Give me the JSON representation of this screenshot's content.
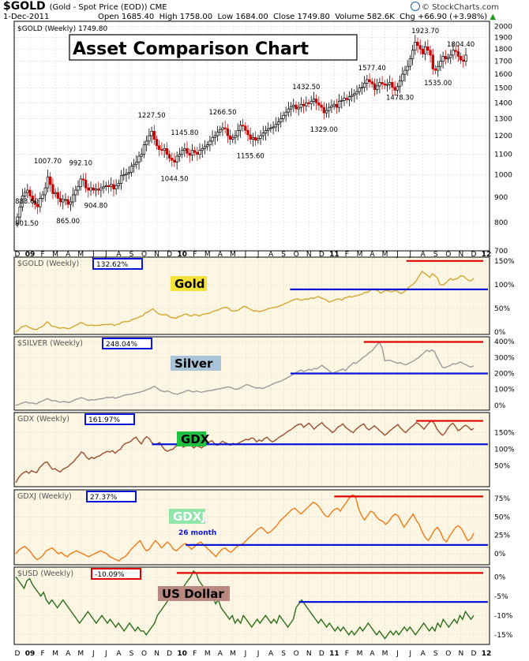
{
  "header": {
    "symbol": "$GOLD",
    "description": "(Gold - Spot Price (EOD)) CME",
    "date": "1-Dec-2011",
    "open": "Open 1685.40",
    "high": "High 1758.00",
    "low": "Low 1684.00",
    "close": "Close 1749.80",
    "volume": "Volume 582.6K",
    "change": "Chg +66.90 (+3.98%)",
    "change_arrow": "▲",
    "brand": "© StockCharts.com"
  },
  "colors": {
    "gold": "#d4a630",
    "silver": "#9a9a9a",
    "gdx": "#9b4e2e",
    "gdxj": "#f07a17",
    "usd": "#2b6e1c",
    "support": "#0a14d8",
    "resistance": "#e00000",
    "up_candle": "#000000",
    "down_candle": "#cc0000",
    "panel_bg": "#fdf6e3"
  },
  "x_axis": {
    "labels": [
      "D",
      "09",
      "F",
      "M",
      "A",
      "M",
      "J",
      "J",
      "A",
      "S",
      "O",
      "N",
      "D",
      "10",
      "F",
      "M",
      "A",
      "M",
      "J",
      "J",
      "A",
      "S",
      "O",
      "N",
      "D",
      "11",
      "F",
      "M",
      "A",
      "M",
      "J",
      "J",
      "A",
      "S",
      "O",
      "N",
      "D",
      "12"
    ],
    "bold": [
      "09",
      "10",
      "11",
      "12"
    ]
  },
  "chart_data": [
    {
      "type": "candlestick",
      "title": "Asset Comparison Chart",
      "legend": "$GOLD (Weekly) 1749.80",
      "x_range": [
        "2008-12",
        "2011-12"
      ],
      "ylim": [
        700,
        2050
      ],
      "y_scale": "log",
      "y_ticks": [
        700,
        800,
        900,
        1000,
        1100,
        1200,
        1300,
        1400,
        1500,
        1600,
        1700,
        1800,
        1900,
        2000
      ],
      "close": [
        820,
        860,
        905,
        920,
        930,
        905,
        885,
        870,
        860,
        895,
        910,
        940,
        990,
        955,
        915,
        920,
        895,
        880,
        890,
        890,
        870,
        880,
        910,
        930,
        945,
        980,
        975,
        940,
        930,
        940,
        930,
        935,
        930,
        940,
        945,
        950,
        945,
        955,
        935,
        950,
        960,
        995,
        1000,
        1005,
        1010,
        1040,
        1050,
        1060,
        1090,
        1100,
        1150,
        1170,
        1200,
        1225,
        1180,
        1145,
        1125,
        1120,
        1130,
        1100,
        1080,
        1070,
        1060,
        1090,
        1100,
        1120,
        1130,
        1105,
        1095,
        1120,
        1110,
        1100,
        1120,
        1130,
        1140,
        1150,
        1170,
        1190,
        1200,
        1220,
        1235,
        1245,
        1240,
        1200,
        1180,
        1190,
        1200,
        1230,
        1260,
        1255,
        1230,
        1205,
        1180,
        1190,
        1175,
        1185,
        1200,
        1215,
        1230,
        1240,
        1245,
        1250,
        1265,
        1280,
        1300,
        1320,
        1340,
        1360,
        1375,
        1385,
        1360,
        1370,
        1390,
        1380,
        1400,
        1395,
        1410,
        1425,
        1400,
        1385,
        1370,
        1335,
        1350,
        1370,
        1380,
        1390,
        1370,
        1410,
        1415,
        1430,
        1420,
        1440,
        1450,
        1460,
        1475,
        1500,
        1505,
        1535,
        1560,
        1545,
        1530,
        1490,
        1515,
        1540,
        1530,
        1520,
        1525,
        1540,
        1505,
        1485,
        1510,
        1550,
        1600,
        1630,
        1660,
        1720,
        1790,
        1860,
        1830,
        1800,
        1760,
        1820,
        1790,
        1750,
        1640,
        1630,
        1660,
        1700,
        1740,
        1720,
        1730,
        1750,
        1790,
        1780,
        1740,
        1710,
        1700,
        1750
      ],
      "labels": [
        {
          "value": "883.60",
          "kind": "high",
          "i": 0
        },
        {
          "value": "801.50",
          "kind": "low",
          "i": 1
        },
        {
          "value": "1007.70",
          "kind": "high",
          "i": 12
        },
        {
          "value": "865.00",
          "kind": "low",
          "i": 20
        },
        {
          "value": "992.10",
          "kind": "high",
          "i": 25
        },
        {
          "value": "904.80",
          "kind": "low",
          "i": 31
        },
        {
          "value": "1227.50",
          "kind": "high",
          "i": 53
        },
        {
          "value": "1145.80",
          "kind": "high",
          "i": 66
        },
        {
          "value": "1044.50",
          "kind": "low",
          "i": 62
        },
        {
          "value": "1266.50",
          "kind": "high",
          "i": 81
        },
        {
          "value": "1155.60",
          "kind": "low",
          "i": 92
        },
        {
          "value": "1432.50",
          "kind": "high",
          "i": 114
        },
        {
          "value": "1329.00",
          "kind": "low",
          "i": 121
        },
        {
          "value": "1577.40",
          "kind": "high",
          "i": 140
        },
        {
          "value": "1478.30",
          "kind": "low",
          "i": 151
        },
        {
          "value": "1923.70",
          "kind": "high",
          "i": 161
        },
        {
          "value": "1535.00",
          "kind": "low",
          "i": 166
        },
        {
          "value": "1804.40",
          "kind": "high",
          "i": 175
        }
      ]
    },
    {
      "type": "line",
      "name": "$GOLD (Weekly)",
      "badge": "132.62%",
      "label": "Gold",
      "ylim": [
        -5,
        158
      ],
      "y_ticks": [
        0,
        50,
        100,
        150
      ],
      "y_tick_labels": [
        "0%",
        "50%",
        "100%",
        "150%"
      ],
      "resistance": 150,
      "support": 90,
      "values": [
        0,
        4,
        10,
        12,
        14,
        10,
        8,
        6,
        5,
        9,
        11,
        15,
        22,
        18,
        12,
        12,
        10,
        8,
        9,
        9,
        7,
        8,
        11,
        14,
        16,
        20,
        19,
        15,
        14,
        15,
        14,
        14,
        14,
        15,
        16,
        16,
        16,
        17,
        14,
        16,
        17,
        21,
        22,
        22,
        23,
        27,
        28,
        30,
        33,
        34,
        40,
        42,
        46,
        49,
        44,
        39,
        37,
        36,
        37,
        34,
        31,
        30,
        29,
        33,
        34,
        37,
        38,
        35,
        34,
        37,
        36,
        34,
        37,
        38,
        39,
        40,
        43,
        45,
        46,
        49,
        51,
        52,
        51,
        46,
        44,
        45,
        46,
        50,
        54,
        53,
        50,
        47,
        44,
        45,
        43,
        44,
        46,
        48,
        50,
        51,
        52,
        53,
        55,
        57,
        60,
        62,
        65,
        67,
        69,
        70,
        67,
        68,
        70,
        69,
        72,
        71,
        73,
        75,
        72,
        70,
        68,
        63,
        65,
        67,
        69,
        70,
        67,
        72,
        73,
        75,
        74,
        76,
        77,
        79,
        80,
        84,
        84,
        88,
        91,
        89,
        87,
        82,
        85,
        88,
        87,
        85,
        86,
        88,
        84,
        81,
        85,
        89,
        95,
        99,
        103,
        110,
        119,
        128,
        124,
        120,
        115,
        123,
        119,
        114,
        100,
        99,
        103,
        108,
        113,
        110,
        112,
        114,
        119,
        118,
        113,
        109,
        108,
        114
      ]
    },
    {
      "type": "line",
      "name": "$SILVER (Weekly)",
      "badge": "248.04%",
      "label": "Silver",
      "ylim": [
        -30,
        430
      ],
      "y_ticks": [
        0,
        100,
        200,
        300,
        400
      ],
      "y_tick_labels": [
        "0%",
        "100%",
        "200%",
        "300%",
        "400%"
      ],
      "resistance": 398,
      "support": 200,
      "values": [
        0,
        5,
        12,
        18,
        22,
        14,
        16,
        12,
        10,
        20,
        26,
        34,
        42,
        36,
        28,
        30,
        24,
        20,
        24,
        22,
        18,
        22,
        30,
        38,
        42,
        48,
        44,
        36,
        32,
        36,
        34,
        38,
        40,
        42,
        46,
        50,
        48,
        52,
        44,
        50,
        54,
        62,
        66,
        68,
        70,
        74,
        78,
        82,
        86,
        90,
        98,
        104,
        112,
        120,
        108,
        96,
        88,
        86,
        90,
        84,
        76,
        72,
        70,
        78,
        82,
        90,
        94,
        88,
        84,
        90,
        86,
        82,
        86,
        90,
        92,
        94,
        98,
        102,
        104,
        108,
        112,
        116,
        114,
        106,
        100,
        104,
        110,
        120,
        130,
        128,
        120,
        114,
        108,
        112,
        106,
        110,
        118,
        124,
        132,
        140,
        146,
        150,
        158,
        166,
        176,
        184,
        194,
        204,
        214,
        222,
        212,
        218,
        226,
        220,
        232,
        228,
        240,
        252,
        238,
        226,
        214,
        200,
        208,
        214,
        222,
        228,
        218,
        238,
        252,
        268,
        264,
        276,
        290,
        304,
        314,
        330,
        340,
        360,
        380,
        395,
        360,
        280,
        282,
        284,
        276,
        270,
        264,
        268,
        260,
        254,
        262,
        270,
        278,
        290,
        300,
        316,
        330,
        346,
        338,
        348,
        338,
        300,
        270,
        240,
        236,
        244,
        250,
        262,
        258,
        266,
        272,
        262,
        256,
        246,
        240,
        248
      ]
    },
    {
      "type": "line",
      "name": "GDX (Weekly)",
      "badge": "161.97%",
      "label": "GDX",
      "ylim": [
        -12,
        210
      ],
      "y_ticks": [
        50,
        100,
        150
      ],
      "y_tick_labels": [
        "50%",
        "100%",
        "150%"
      ],
      "resistance": 185,
      "support": 115,
      "values": [
        0,
        14,
        24,
        30,
        34,
        28,
        36,
        32,
        30,
        44,
        52,
        60,
        62,
        50,
        40,
        42,
        36,
        32,
        40,
        44,
        48,
        56,
        62,
        72,
        80,
        92,
        88,
        76,
        70,
        76,
        72,
        78,
        80,
        86,
        90,
        94,
        92,
        96,
        88,
        96,
        100,
        112,
        118,
        120,
        124,
        132,
        136,
        124,
        116,
        130,
        138,
        132,
        120,
        114,
        116,
        120,
        108,
        98,
        94,
        98,
        100,
        108,
        112,
        116,
        106,
        110,
        116,
        112,
        104,
        110,
        108,
        104,
        110,
        118,
        122,
        126,
        116,
        112,
        118,
        124,
        120,
        116,
        112,
        118,
        114,
        118,
        122,
        126,
        130,
        128,
        134,
        132,
        122,
        128,
        124,
        132,
        136,
        128,
        122,
        126,
        132,
        138,
        142,
        148,
        154,
        158,
        164,
        170,
        174,
        176,
        166,
        172,
        178,
        170,
        160,
        168,
        174,
        180,
        170,
        164,
        158,
        150,
        156,
        166,
        170,
        176,
        166,
        160,
        154,
        150,
        160,
        166,
        172,
        176,
        164,
        158,
        164,
        170,
        164,
        156,
        150,
        142,
        148,
        156,
        162,
        168,
        174,
        164,
        156,
        150,
        158,
        166,
        172,
        180,
        176,
        168,
        160,
        170,
        180,
        186,
        176,
        160,
        150,
        142,
        148,
        162,
        172,
        178,
        168,
        156,
        160,
        168,
        172,
        166,
        158,
        162
      ]
    },
    {
      "type": "line",
      "name": "GDXJ (Weekly)",
      "badge": "27.37%",
      "label": "GDXJ",
      "annotation": "26 month",
      "ylim": [
        -15,
        87
      ],
      "y_ticks": [
        0,
        25,
        50,
        75
      ],
      "y_tick_labels": [
        "0%",
        "25%",
        "50%",
        "75%"
      ],
      "resistance": 78,
      "support": 12,
      "values": [
        0,
        5,
        8,
        10,
        6,
        2,
        -4,
        -8,
        -6,
        -2,
        4,
        6,
        8,
        4,
        0,
        2,
        -2,
        -4,
        0,
        2,
        4,
        2,
        0,
        -2,
        -4,
        -2,
        0,
        2,
        4,
        2,
        0,
        -4,
        -6,
        -8,
        -10,
        -6,
        -4,
        0,
        6,
        10,
        14,
        18,
        10,
        4,
        6,
        12,
        18,
        14,
        8,
        12,
        16,
        12,
        6,
        4,
        8,
        12,
        14,
        10,
        6,
        10,
        14,
        16,
        12,
        8,
        4,
        0,
        -4,
        2,
        6,
        8,
        4,
        2,
        6,
        10,
        12,
        14,
        18,
        22,
        26,
        30,
        34,
        36,
        32,
        28,
        30,
        34,
        38,
        44,
        48,
        52,
        56,
        60,
        62,
        58,
        54,
        58,
        62,
        66,
        70,
        68,
        64,
        58,
        52,
        50,
        56,
        60,
        62,
        58,
        64,
        70,
        76,
        80,
        78,
        62,
        52,
        46,
        52,
        58,
        56,
        50,
        46,
        44,
        40,
        44,
        50,
        54,
        52,
        44,
        36,
        42,
        48,
        54,
        46,
        40,
        30,
        22,
        18,
        24,
        32,
        36,
        30,
        20,
        16,
        24,
        30,
        36,
        38,
        34,
        26,
        18,
        20,
        28
      ]
    },
    {
      "type": "line",
      "name": "$USD (Weekly)",
      "badge": "-10.09%",
      "label": "US Dollar",
      "ylim": [
        -17.5,
        2.5
      ],
      "y_ticks": [
        0,
        -5,
        -10,
        -15
      ],
      "y_tick_labels": [
        "0%",
        "-5%",
        "-10%",
        "-15%"
      ],
      "resistance": 1,
      "support": -6.5,
      "values": [
        0,
        -1,
        -2,
        -3,
        -1,
        -0.5,
        -2,
        -3,
        -4,
        -5,
        -4,
        -6,
        -7,
        -6,
        -7,
        -8,
        -7,
        -6,
        -7,
        -8,
        -9,
        -10,
        -11,
        -12,
        -11,
        -10,
        -9,
        -10,
        -11,
        -12,
        -11,
        -10,
        -11,
        -12,
        -11,
        -12,
        -13,
        -12,
        -13,
        -14,
        -13,
        -12,
        -13,
        -14,
        -13,
        -14,
        -14,
        -15,
        -14,
        -13,
        -12,
        -10,
        -9,
        -8,
        -7,
        -6,
        -5,
        -6,
        -5,
        -4,
        -3,
        -2,
        -1,
        0,
        1.5,
        1,
        -1,
        -2,
        -3,
        -5,
        -6,
        -5,
        -7,
        -6,
        -8,
        -9,
        -10,
        -11,
        -10,
        -12,
        -11,
        -12,
        -10,
        -11,
        -12,
        -13,
        -12,
        -11,
        -12,
        -11,
        -10,
        -11,
        -12,
        -11,
        -12,
        -10,
        -11,
        -12,
        -13,
        -12,
        -11,
        -8,
        -7,
        -6,
        -7,
        -8,
        -9,
        -10,
        -11,
        -12,
        -11,
        -12,
        -13,
        -12,
        -13,
        -14,
        -13,
        -14,
        -13,
        -14,
        -15,
        -14,
        -15,
        -14,
        -13,
        -14,
        -13,
        -12,
        -13,
        -14,
        -15,
        -14,
        -15,
        -16,
        -15,
        -14,
        -15,
        -14,
        -15,
        -14,
        -13,
        -14,
        -13,
        -14,
        -15,
        -14,
        -13,
        -12,
        -13,
        -14,
        -13,
        -14,
        -12,
        -13,
        -11,
        -12,
        -13,
        -12,
        -11,
        -12,
        -10,
        -11,
        -9,
        -10,
        -11,
        -10
      ]
    }
  ]
}
